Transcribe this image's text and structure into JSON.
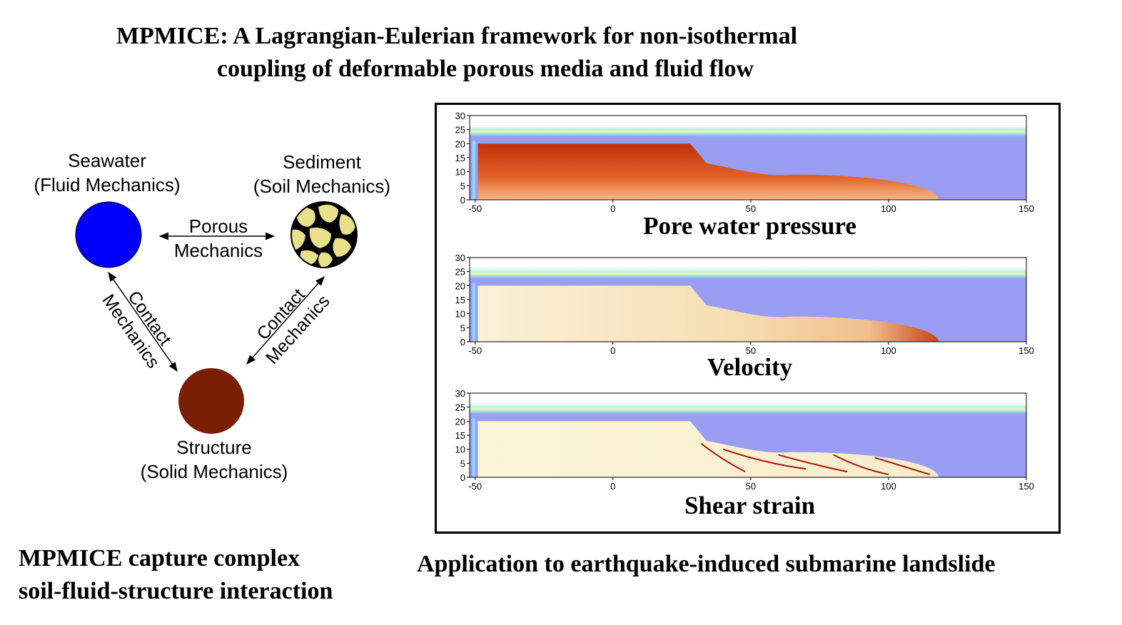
{
  "title": {
    "line1": "MPMICE: A Lagrangian-Eulerian framework for non-isothermal",
    "line2": "coupling of deformable porous media and fluid flow"
  },
  "diagram": {
    "seawater": {
      "name": "Seawater",
      "subtitle": "(Fluid Mechanics)",
      "color": "#0000ff"
    },
    "sediment": {
      "name": "Sediment",
      "subtitle": "(Soil Mechanics)",
      "color": "#e8e08a",
      "grain_outline": "#000000"
    },
    "structure": {
      "name": "Structure",
      "subtitle": "(Solid Mechanics)",
      "color": "#7a1e06"
    },
    "porous_link": {
      "line1": "Porous",
      "line2": "Mechanics"
    },
    "contact_left": {
      "line1": "Contact",
      "line2": "Mechanics"
    },
    "contact_right": {
      "line1": "Contact",
      "line2": "Mechanics"
    }
  },
  "simulation": {
    "y_ticks": [
      "30",
      "25",
      "20",
      "15",
      "10",
      "5",
      "0"
    ],
    "x_ticks": [
      "-50",
      "0",
      "50",
      "100",
      "150"
    ],
    "panels": [
      {
        "label": "Pore water pressure",
        "fill": "pressure"
      },
      {
        "label": "Velocity",
        "fill": "velocity"
      },
      {
        "label": "Shear strain",
        "fill": "shear"
      }
    ],
    "water_color": "#9a9ef2"
  },
  "caption_left": {
    "line1": "MPMICE capture complex",
    "line2": "soil-fluid-structure interaction"
  },
  "caption_right": "Application to earthquake-induced submarine landslide"
}
